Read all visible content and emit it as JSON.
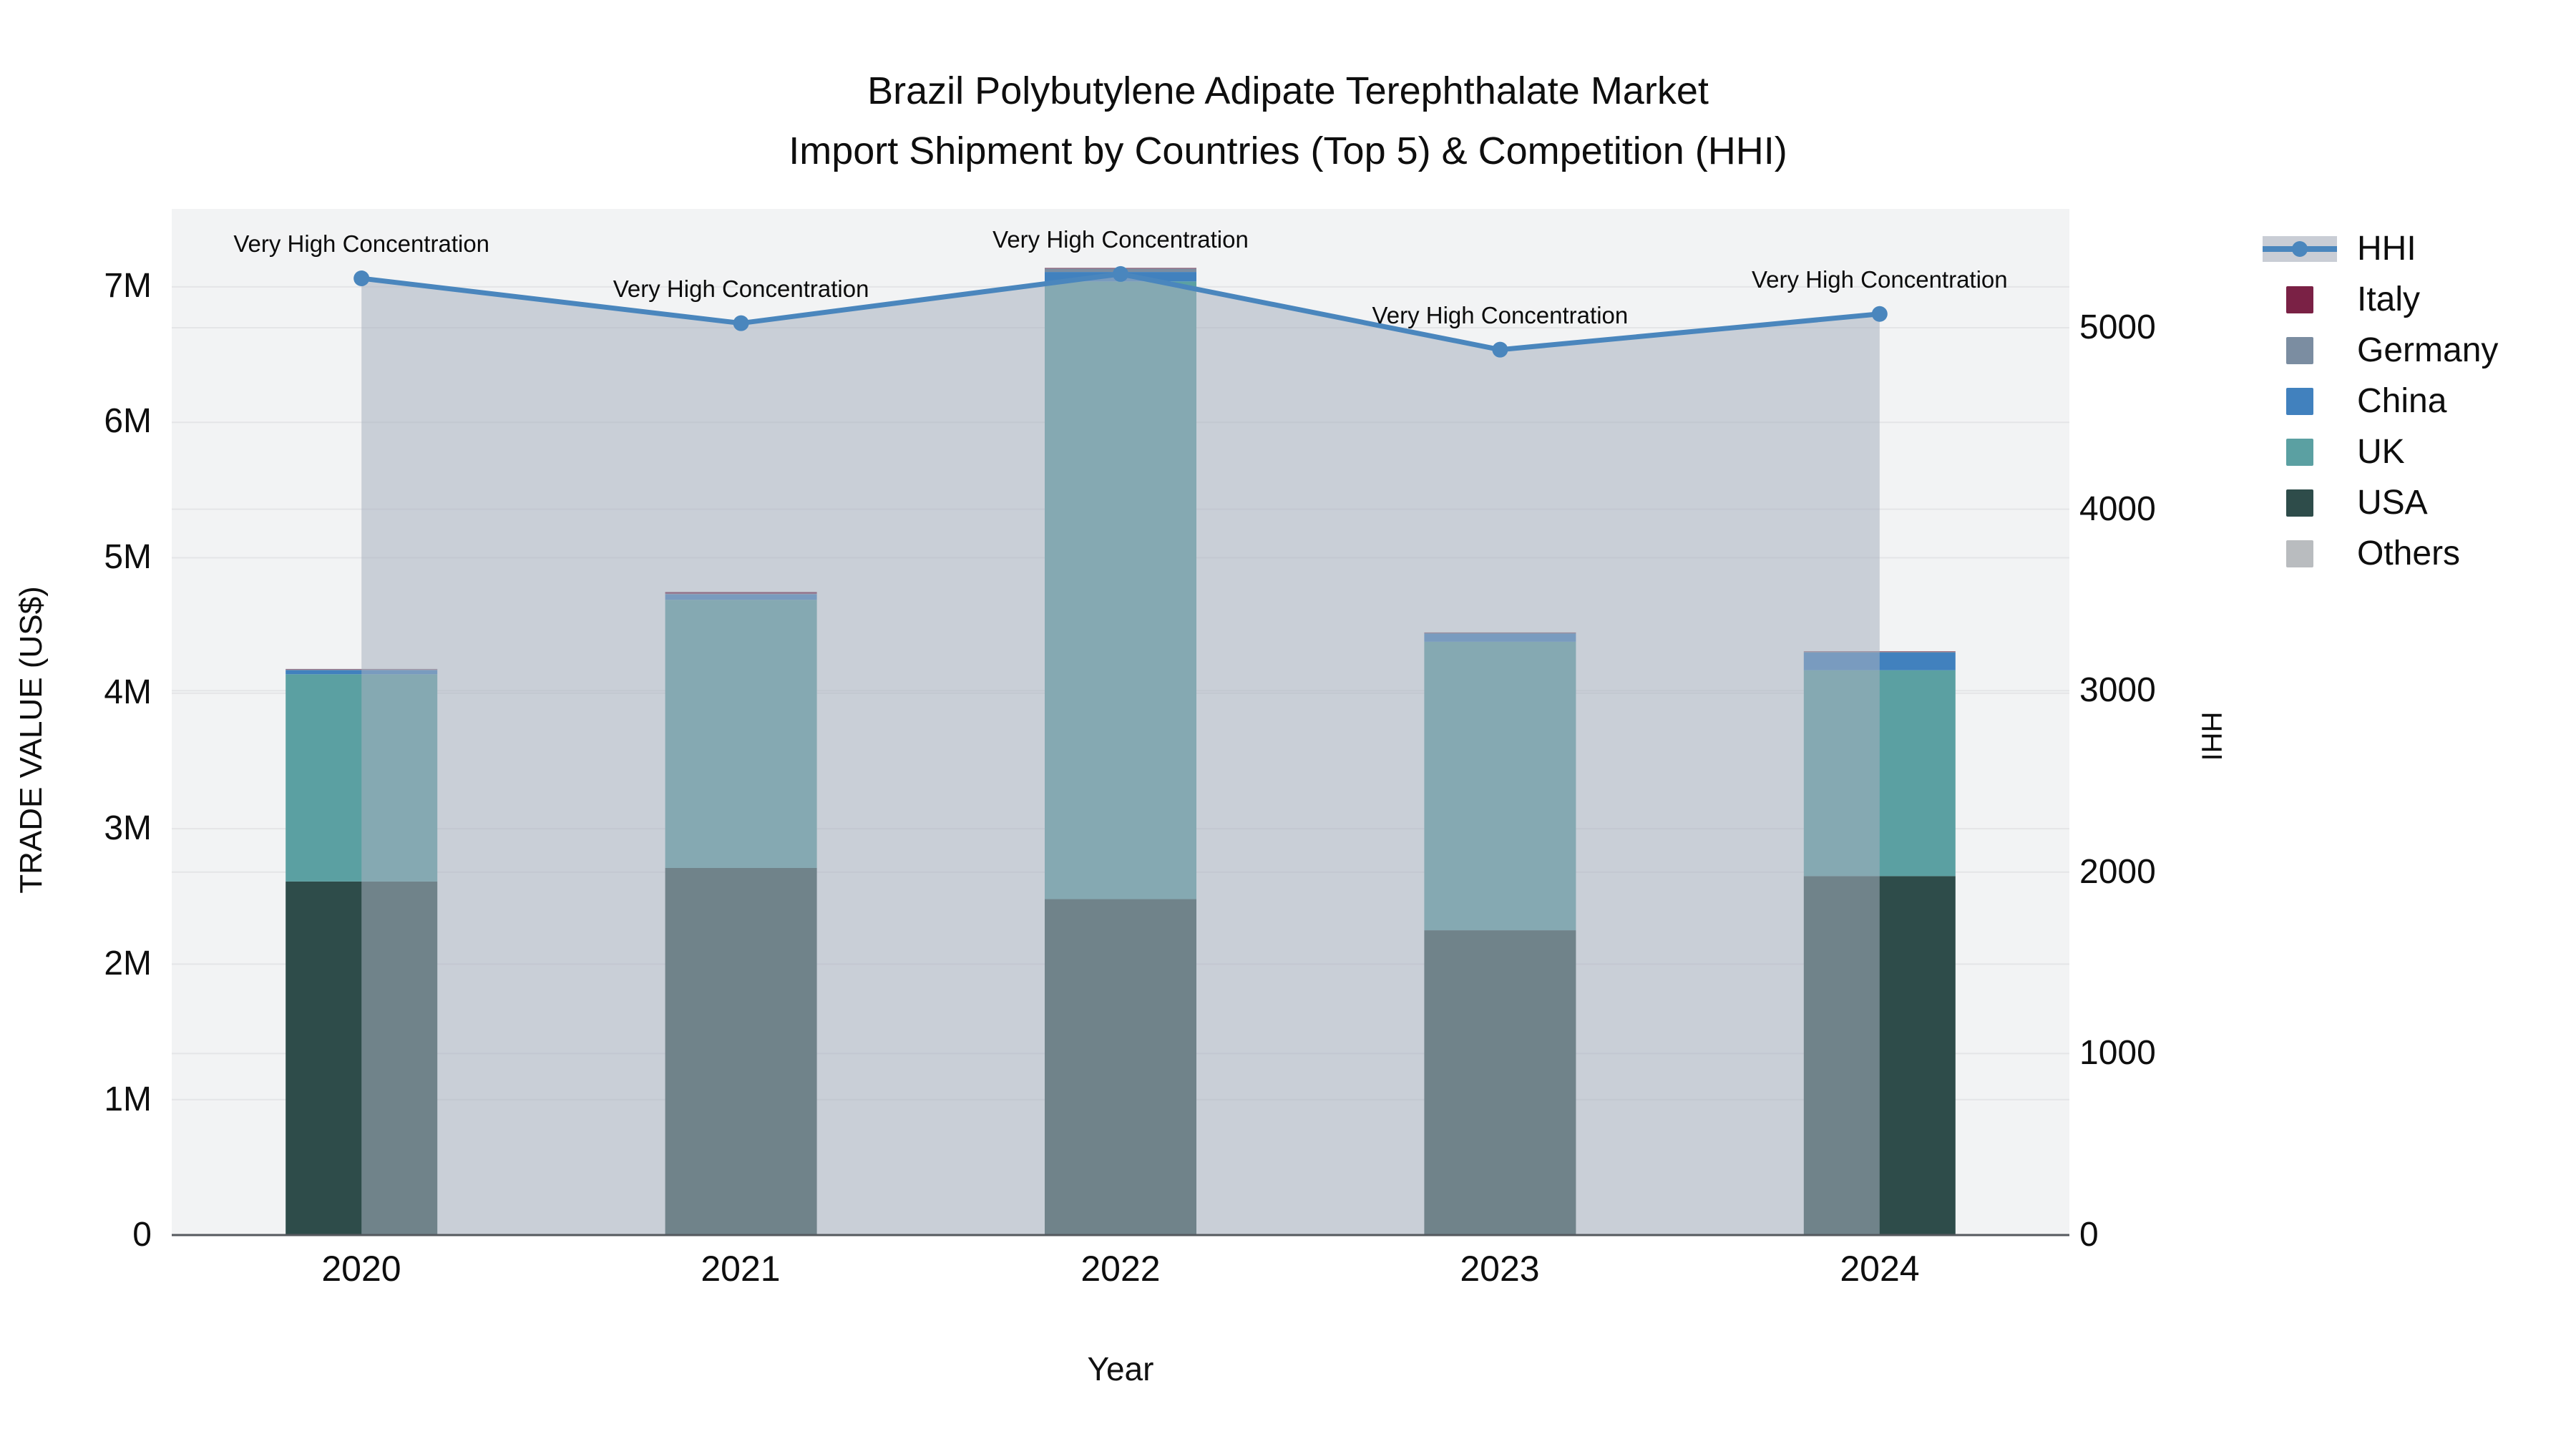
{
  "title": {
    "line1": "Brazil Polybutylene Adipate Terephthalate Market",
    "line2": "Import Shipment by Countries (Top 5) & Competition (HHI)"
  },
  "axes": {
    "y_left": {
      "title": "TRADE VALUE (US$)",
      "ticks": [
        "0",
        "1M",
        "2M",
        "3M",
        "4M",
        "5M",
        "6M",
        "7M"
      ]
    },
    "y_right": {
      "title": "HHI",
      "ticks": [
        "0",
        "1000",
        "2000",
        "3000",
        "4000",
        "5000"
      ]
    },
    "x": {
      "title": "Year",
      "categories": [
        "2020",
        "2021",
        "2022",
        "2023",
        "2024"
      ]
    }
  },
  "annotations": [
    "Very High Concentration",
    "Very High Concentration",
    "Very High Concentration",
    "Very High Concentration",
    "Very High Concentration"
  ],
  "legend": [
    {
      "label": "HHI",
      "color": "#4a86bd",
      "sample": "line-area"
    },
    {
      "label": "Italy",
      "color": "#7a2145",
      "sample": "swatch"
    },
    {
      "label": "Germany",
      "color": "#7b8da1",
      "sample": "swatch"
    },
    {
      "label": "China",
      "color": "#4181be",
      "sample": "swatch"
    },
    {
      "label": "UK",
      "color": "#5ba0a2",
      "sample": "swatch"
    },
    {
      "label": "USA",
      "color": "#2e4c4a",
      "sample": "swatch"
    },
    {
      "label": "Others",
      "color": "#b9bcbf",
      "sample": "swatch"
    }
  ],
  "colors": {
    "plot_background": "#f2f3f4",
    "gridline": "#e4e5e7",
    "axis_line": "#55595e",
    "hhi_area_fill": "rgba(167,176,191,0.55)"
  },
  "chart_data": {
    "type": "bar",
    "subtype": "stacked-bars-with-line-overlay",
    "categories": [
      "2020",
      "2021",
      "2022",
      "2023",
      "2024"
    ],
    "bar_unit": "US$ millions (left axis, TRADE VALUE)",
    "series": [
      {
        "name": "USA",
        "type": "bar",
        "axis": "left",
        "color": "#2e4c4a",
        "values": [
          2.61,
          2.71,
          2.48,
          2.25,
          2.65
        ]
      },
      {
        "name": "UK",
        "type": "bar",
        "axis": "left",
        "color": "#5ba0a2",
        "values": [
          1.53,
          1.98,
          4.56,
          2.13,
          1.52
        ]
      },
      {
        "name": "China",
        "type": "bar",
        "axis": "left",
        "color": "#4181be",
        "values": [
          0.03,
          0.04,
          0.07,
          0.06,
          0.13
        ]
      },
      {
        "name": "Germany",
        "type": "bar",
        "axis": "left",
        "color": "#7b8da1",
        "values": [
          0.005,
          0.005,
          0.025,
          0.005,
          0.005
        ]
      },
      {
        "name": "Italy",
        "type": "bar",
        "axis": "left",
        "color": "#7a2145",
        "values": [
          0.003,
          0.012,
          0.004,
          0.003,
          0.003
        ]
      },
      {
        "name": "Others",
        "type": "bar",
        "axis": "left",
        "color": "#b9bcbf",
        "values": [
          0.002,
          0.002,
          0.002,
          0.002,
          0.002
        ]
      },
      {
        "name": "HHI",
        "type": "line",
        "axis": "right",
        "color": "#4a86bd",
        "fill": "rgba(167,176,191,0.55)",
        "values": [
          5272,
          5025,
          5296,
          4879,
          5076
        ]
      }
    ],
    "bar_totals_musd": [
      4.18,
      4.75,
      7.14,
      4.45,
      4.31
    ],
    "xlabel": "Year",
    "ylabel_left": "TRADE VALUE (US$)",
    "ylabel_right": "HHI",
    "ylim_left": [
      0,
      7.58
    ],
    "ylim_right": [
      0,
      5655
    ],
    "grid": true,
    "legend_position": "right"
  }
}
